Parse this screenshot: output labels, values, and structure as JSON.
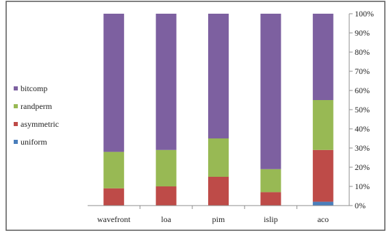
{
  "chart_data": {
    "type": "bar",
    "stacked": true,
    "normalized": true,
    "categories": [
      "wavefront",
      "loa",
      "pim",
      "islip",
      "aco"
    ],
    "series": [
      {
        "name": "uniform",
        "color": "#4a7ebb",
        "values": [
          0,
          0,
          0,
          0,
          2
        ]
      },
      {
        "name": "asymmetric",
        "color": "#be4b48",
        "values": [
          9,
          10,
          15,
          7,
          27
        ]
      },
      {
        "name": "randperm",
        "color": "#98b954",
        "values": [
          19,
          19,
          20,
          12,
          26
        ]
      },
      {
        "name": "bitcomp",
        "color": "#7d60a0",
        "values": [
          72,
          71,
          65,
          81,
          45
        ]
      }
    ],
    "y_ticks": [
      "0%",
      "10%",
      "20%",
      "30%",
      "40%",
      "50%",
      "60%",
      "70%",
      "80%",
      "90%",
      "100%"
    ],
    "ylim": [
      0,
      100
    ],
    "y_axis_side": "right",
    "legend_position": "left",
    "legend_order": [
      "bitcomp",
      "randperm",
      "asymmetric",
      "uniform"
    ],
    "grid": false,
    "title": "",
    "xlabel": "",
    "ylabel": ""
  }
}
